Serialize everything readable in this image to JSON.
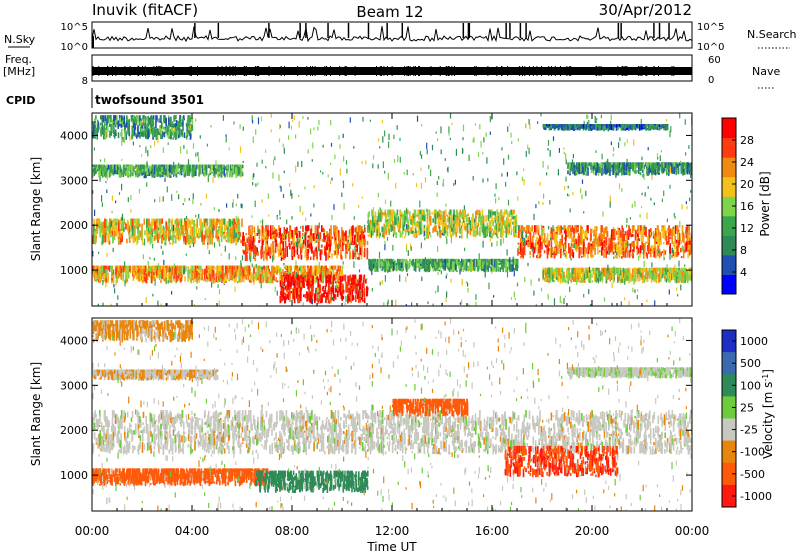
{
  "header": {
    "title": "Inuvik (fitACF)",
    "beam": "Beam 12",
    "date": "30/Apr/2012"
  },
  "nsky": {
    "label": "N.Sky",
    "tick_high": "10^5",
    "tick_low": "10^0",
    "right_label": "N.Search",
    "right_tick_high": "10^5",
    "right_tick_low": "10^0"
  },
  "freq": {
    "label_line1": "Freq.",
    "label_line2": "[MHz]",
    "tick": "8",
    "right_label": "Nave",
    "right_tick_high": "60",
    "right_tick_low": "0"
  },
  "cpid": {
    "label": "CPID",
    "program": "twofsound 3501"
  },
  "x_axis": {
    "label": "Time UT",
    "ticks": [
      "00:00",
      "04:00",
      "08:00",
      "12:00",
      "16:00",
      "20:00",
      "00:00"
    ],
    "tick_hours": [
      0,
      4,
      8,
      12,
      16,
      20,
      24
    ],
    "range_hours": [
      0,
      24
    ]
  },
  "colors": {
    "power": [
      "#0000ff",
      "#1f4fb0",
      "#2e8b57",
      "#3aa64e",
      "#7fd54a",
      "#f2c21a",
      "#f08a10",
      "#ff3b0f",
      "#ff0000"
    ],
    "velocity": [
      "#1f2fc4",
      "#3a6ab0",
      "#2e8b57",
      "#6ccc3c",
      "#c8c8c0",
      "#e8860c",
      "#ff5a0a",
      "#ff1a10"
    ]
  },
  "chart_data": [
    {
      "type": "heatmap",
      "panel": "power",
      "ylabel": "Slant Range [km]",
      "ylim": [
        200,
        4500
      ],
      "yticks": [
        1000,
        2000,
        3000,
        4000
      ],
      "xlim": [
        0,
        24
      ],
      "colorbar": {
        "label": "Power [dB]",
        "range": [
          0,
          32
        ],
        "ticks": [
          "4",
          "8",
          "12",
          "16",
          "20",
          "24",
          "28"
        ],
        "tick_values": [
          4,
          8,
          12,
          16,
          20,
          24,
          28
        ]
      },
      "bands": [
        {
          "t": [
            0,
            6
          ],
          "r": [
            1550,
            2150
          ],
          "v": 20
        },
        {
          "t": [
            6,
            11
          ],
          "r": [
            1200,
            2000
          ],
          "v": 26
        },
        {
          "t": [
            11,
            17
          ],
          "r": [
            1700,
            2350
          ],
          "v": 18
        },
        {
          "t": [
            17,
            24
          ],
          "r": [
            1250,
            2000
          ],
          "v": 24
        },
        {
          "t": [
            0,
            10
          ],
          "r": [
            700,
            1100
          ],
          "v": 22
        },
        {
          "t": [
            7.5,
            11
          ],
          "r": [
            250,
            900
          ],
          "v": 30
        },
        {
          "t": [
            11,
            17
          ],
          "r": [
            950,
            1250
          ],
          "v": 12
        },
        {
          "t": [
            18,
            24
          ],
          "r": [
            700,
            1050
          ],
          "v": 18
        },
        {
          "t": [
            0,
            6
          ],
          "r": [
            3050,
            3350
          ],
          "v": 12
        },
        {
          "t": [
            0,
            4
          ],
          "r": [
            3900,
            4450
          ],
          "v": 10
        },
        {
          "t": [
            19,
            24
          ],
          "r": [
            3100,
            3400
          ],
          "v": 10
        },
        {
          "t": [
            18,
            23
          ],
          "r": [
            4100,
            4250
          ],
          "v": 8
        }
      ]
    },
    {
      "type": "heatmap",
      "panel": "velocity",
      "ylabel": "Slant Range [km]",
      "ylim": [
        200,
        4500
      ],
      "yticks": [
        1000,
        2000,
        3000,
        4000
      ],
      "xlim": [
        0,
        24
      ],
      "colorbar": {
        "label": "Velocity [m s^-1]",
        "ticks": [
          "1000",
          "500",
          "100",
          "25",
          "-25",
          "-100",
          "-500",
          "-1000"
        ]
      },
      "bands": [
        {
          "t": [
            0,
            24
          ],
          "r": [
            1450,
            2450
          ],
          "v": 0
        },
        {
          "t": [
            0,
            7
          ],
          "r": [
            750,
            1150
          ],
          "v": -200
        },
        {
          "t": [
            6.5,
            11
          ],
          "r": [
            600,
            1100
          ],
          "v": 200
        },
        {
          "t": [
            16.5,
            21
          ],
          "r": [
            950,
            1650
          ],
          "v": -500
        },
        {
          "t": [
            12,
            15
          ],
          "r": [
            2300,
            2700
          ],
          "v": -200
        },
        {
          "t": [
            0,
            5
          ],
          "r": [
            3100,
            3350
          ],
          "v": -20
        },
        {
          "t": [
            0,
            4
          ],
          "r": [
            3950,
            4450
          ],
          "v": -40
        },
        {
          "t": [
            19,
            24
          ],
          "r": [
            3150,
            3400
          ],
          "v": 10
        }
      ]
    }
  ]
}
